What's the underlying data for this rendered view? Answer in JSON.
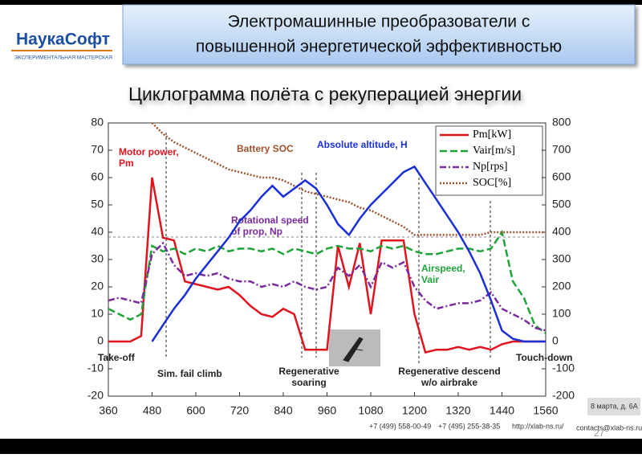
{
  "header": {
    "logo": "НаукаСофт",
    "logo_sub": "ЭКСПЕРИМЕНТАЛЬНАЯ МАСТЕРСКАЯ",
    "title_lines": [
      "Электромашинные преобразователи с",
      "повышенной энергетической эффективностью"
    ],
    "subtitle": "Циклограмма полёта с рекуперацией энергии"
  },
  "chart_data": {
    "type": "line",
    "x": [
      360,
      390,
      420,
      450,
      480,
      510,
      540,
      570,
      600,
      630,
      660,
      690,
      720,
      750,
      780,
      810,
      840,
      870,
      900,
      930,
      960,
      990,
      1020,
      1050,
      1080,
      1110,
      1140,
      1170,
      1200,
      1230,
      1260,
      1290,
      1320,
      1350,
      1380,
      1410,
      1440,
      1470,
      1500,
      1530,
      1560
    ],
    "xlim": [
      360,
      1560
    ],
    "xticks": [
      360,
      480,
      600,
      720,
      840,
      960,
      1080,
      1200,
      1320,
      1440,
      1560
    ],
    "ylim": [
      -20,
      80
    ],
    "yticks": [
      -20,
      -10,
      0,
      10,
      20,
      30,
      40,
      50,
      60,
      70,
      80
    ],
    "y2lim": [
      -200,
      800
    ],
    "y2ticks": [
      -200,
      -100,
      0,
      100,
      200,
      300,
      400,
      500,
      600,
      700,
      800
    ],
    "series": [
      {
        "name": "Pm[kW]",
        "color": "#e0141e",
        "style": "solid",
        "values": [
          0,
          0,
          0,
          2,
          60,
          38,
          37,
          22,
          21,
          20,
          19,
          20,
          17,
          13,
          10,
          9,
          12,
          10,
          -3,
          -3,
          -3,
          35,
          20,
          36,
          10,
          37,
          37,
          37,
          10,
          -4,
          -3,
          -3,
          -2,
          -3,
          -2,
          -3,
          -1,
          0,
          0,
          0,
          0
        ]
      },
      {
        "name": "Vair[m/s]",
        "color": "#1fa43a",
        "style": "dashed",
        "values": [
          12,
          10,
          8,
          10,
          35,
          33,
          34,
          32,
          34,
          33,
          35,
          33,
          34,
          34,
          33,
          34,
          32,
          34,
          33,
          32,
          34,
          35,
          34,
          34,
          33,
          35,
          34,
          35,
          33,
          32,
          32,
          33,
          34,
          34,
          33,
          34,
          40,
          22,
          16,
          6,
          3
        ]
      },
      {
        "name": "Np[rps]",
        "color": "#7b2a9e",
        "style": "dashdot",
        "values": [
          15,
          16,
          15,
          14,
          32,
          36,
          28,
          24,
          25,
          24,
          25,
          23,
          22,
          22,
          20,
          21,
          20,
          22,
          20,
          19,
          20,
          27,
          24,
          28,
          20,
          29,
          27,
          29,
          20,
          15,
          12,
          13,
          14,
          14,
          15,
          18,
          12,
          10,
          8,
          5,
          4
        ]
      },
      {
        "name": "SOC[%]",
        "color": "#a0522d",
        "style": "dotted",
        "values": [
          null,
          null,
          null,
          null,
          80,
          76,
          73,
          71,
          69,
          67,
          65,
          63,
          62,
          61,
          60,
          60,
          59,
          57,
          55,
          54,
          53,
          52,
          51,
          49,
          48,
          46,
          44,
          42,
          39,
          39,
          39,
          39,
          39,
          39,
          39,
          40,
          40,
          40,
          40,
          40,
          40
        ]
      },
      {
        "color": "#1a2fd6",
        "style": "solid",
        "axis": "y2",
        "values": [
          null,
          null,
          null,
          null,
          0,
          60,
          120,
          170,
          230,
          280,
          330,
          380,
          440,
          480,
          530,
          570,
          530,
          560,
          590,
          560,
          500,
          430,
          390,
          450,
          500,
          540,
          580,
          620,
          640,
          580,
          520,
          460,
          400,
          330,
          250,
          150,
          40,
          10,
          0,
          0,
          0
        ]
      }
    ],
    "annotations": [
      {
        "lines": [
          "Motor power,",
          "Pm"
        ],
        "color": "#e0141e"
      },
      {
        "lines": [
          "Battery SOC"
        ],
        "color": "#a0522d"
      },
      {
        "lines": [
          "Absolute altitude, H"
        ],
        "color": "#1a2fd6"
      },
      {
        "lines": [
          "Rotational speed",
          "of prop, Np"
        ],
        "color": "#7b2a9e"
      },
      {
        "lines": [
          "Airspeed,",
          "Vair"
        ],
        "color": "#1fa43a"
      },
      {
        "lines": [
          "Take-off"
        ],
        "color": "#222222"
      },
      {
        "lines": [
          "Sim. fail climb"
        ],
        "color": "#222222"
      },
      {
        "lines": [
          "Regenerative",
          "soaring"
        ],
        "color": "#222222"
      },
      {
        "lines": [
          "Regenerative descend",
          "w/o airbrake"
        ],
        "color": "#222222"
      },
      {
        "lines": [
          "Touch-down"
        ],
        "color": "#222222"
      }
    ]
  },
  "footer": {
    "address": "8 марта, д. 6А",
    "phone1": "+7 (499) 558-00-49",
    "phone2": "+7 (495) 255-38-35",
    "site": "http://xlab-ns.ru/",
    "email": "contacts@xlab-ns.ru",
    "page": "27"
  }
}
